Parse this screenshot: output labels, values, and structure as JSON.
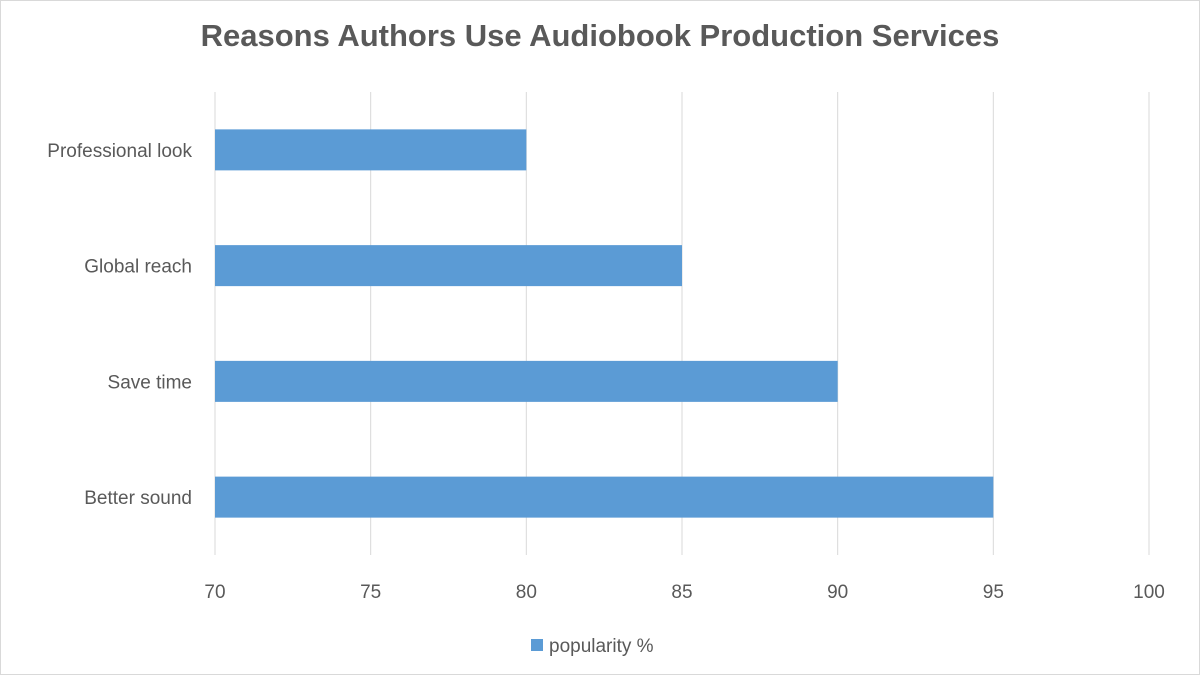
{
  "chart_data": {
    "type": "bar",
    "orientation": "horizontal",
    "title": "Reasons Authors Use Audiobook Production Services",
    "categories": [
      "Professional look",
      "Global reach",
      "Save time",
      "Better sound"
    ],
    "series": [
      {
        "name": "popularity %",
        "values": [
          80,
          85,
          90,
          95
        ],
        "color": "#5B9BD5"
      }
    ],
    "xlim": [
      70,
      100
    ],
    "xticks": [
      70,
      75,
      80,
      85,
      90,
      95,
      100
    ],
    "xlabel": "",
    "ylabel": "",
    "grid": "vertical",
    "legend": "bottom"
  }
}
